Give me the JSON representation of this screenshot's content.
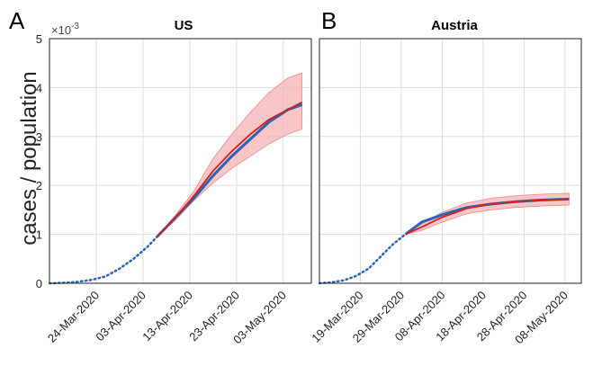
{
  "figure": {
    "ylabel": "cases / population",
    "exponent_label": "×10",
    "exponent_power": "-3"
  },
  "chart_data": [
    {
      "type": "line",
      "panel_letter": "A",
      "title": "US",
      "xlabel": "",
      "ylabel": "cases / population",
      "ylim": [
        0,
        5
      ],
      "y_scale": "×10^-3",
      "y_ticks": [
        "0",
        "1",
        "2",
        "3",
        "4",
        "5"
      ],
      "x_ticks": [
        "24-Mar-2020",
        "03-Apr-2020",
        "13-Apr-2020",
        "23-Apr-2020",
        "03-May-2020"
      ],
      "grid": true,
      "colors": {
        "observed": "#2a63b8",
        "fit": "#d81e1e",
        "band": "#f6b3b3"
      },
      "series": [
        {
          "style": "dotted",
          "values_by_date": [
            [
              "2020-03-14",
              0.0
            ],
            [
              "2020-03-17",
              0.01
            ],
            [
              "2020-03-20",
              0.03
            ],
            [
              "2020-03-23",
              0.07
            ],
            [
              "2020-03-26",
              0.14
            ],
            [
              "2020-03-29",
              0.3
            ],
            [
              "2020-04-01",
              0.5
            ],
            [
              "2020-04-04",
              0.75
            ],
            [
              "2020-04-06",
              0.95
            ]
          ]
        },
        {
          "style": "solid-blue",
          "values_by_date": [
            [
              "2020-04-06",
              0.95
            ],
            [
              "2020-04-10",
              1.35
            ],
            [
              "2020-04-14",
              1.75
            ],
            [
              "2020-04-18",
              2.2
            ],
            [
              "2020-04-22",
              2.6
            ],
            [
              "2020-04-26",
              2.95
            ],
            [
              "2020-04-30",
              3.3
            ],
            [
              "2020-05-04",
              3.55
            ],
            [
              "2020-05-07",
              3.65
            ]
          ]
        },
        {
          "style": "solid-red",
          "values_by_date": [
            [
              "2020-04-06",
              0.95
            ],
            [
              "2020-04-10",
              1.35
            ],
            [
              "2020-04-14",
              1.8
            ],
            [
              "2020-04-18",
              2.3
            ],
            [
              "2020-04-22",
              2.7
            ],
            [
              "2020-04-26",
              3.05
            ],
            [
              "2020-04-30",
              3.35
            ],
            [
              "2020-05-04",
              3.55
            ],
            [
              "2020-05-07",
              3.7
            ]
          ]
        }
      ],
      "band": {
        "dates": [
          "2020-04-06",
          "2020-04-10",
          "2020-04-14",
          "2020-04-18",
          "2020-04-22",
          "2020-04-26",
          "2020-04-30",
          "2020-05-04",
          "2020-05-07"
        ],
        "lower": [
          0.95,
          1.3,
          1.7,
          2.05,
          2.35,
          2.6,
          2.85,
          3.05,
          3.15
        ],
        "upper": [
          0.95,
          1.4,
          1.9,
          2.55,
          3.05,
          3.5,
          3.9,
          4.2,
          4.3
        ]
      }
    },
    {
      "type": "line",
      "panel_letter": "B",
      "title": "Austria",
      "xlabel": "",
      "ylim": [
        0,
        5
      ],
      "y_scale": "×10^-3",
      "x_ticks": [
        "19-Mar-2020",
        "29-Mar-2020",
        "08-Apr-2020",
        "18-Apr-2020",
        "28-Apr-2020",
        "08-May-2020"
      ],
      "grid": true,
      "colors": {
        "observed": "#2a63b8",
        "fit": "#d81e1e",
        "band": "#f6b3b3"
      },
      "series": [
        {
          "style": "dotted",
          "values_by_date": [
            [
              "2020-03-09",
              0.0
            ],
            [
              "2020-03-12",
              0.02
            ],
            [
              "2020-03-15",
              0.06
            ],
            [
              "2020-03-18",
              0.15
            ],
            [
              "2020-03-21",
              0.3
            ],
            [
              "2020-03-24",
              0.55
            ],
            [
              "2020-03-27",
              0.8
            ],
            [
              "2020-03-30",
              1.0
            ]
          ]
        },
        {
          "style": "solid-blue",
          "values_by_date": [
            [
              "2020-03-30",
              1.0
            ],
            [
              "2020-04-03",
              1.25
            ],
            [
              "2020-04-08",
              1.4
            ],
            [
              "2020-04-14",
              1.55
            ],
            [
              "2020-04-20",
              1.62
            ],
            [
              "2020-04-26",
              1.67
            ],
            [
              "2020-05-02",
              1.7
            ],
            [
              "2020-05-09",
              1.72
            ]
          ]
        },
        {
          "style": "solid-red",
          "values_by_date": [
            [
              "2020-03-30",
              1.0
            ],
            [
              "2020-04-03",
              1.15
            ],
            [
              "2020-04-08",
              1.35
            ],
            [
              "2020-04-14",
              1.53
            ],
            [
              "2020-04-20",
              1.62
            ],
            [
              "2020-04-26",
              1.67
            ],
            [
              "2020-05-02",
              1.7
            ],
            [
              "2020-05-09",
              1.72
            ]
          ]
        }
      ],
      "band": {
        "dates": [
          "2020-03-30",
          "2020-04-03",
          "2020-04-08",
          "2020-04-14",
          "2020-04-20",
          "2020-04-26",
          "2020-05-02",
          "2020-05-09"
        ],
        "lower": [
          1.0,
          1.08,
          1.25,
          1.42,
          1.5,
          1.55,
          1.58,
          1.6
        ],
        "upper": [
          1.0,
          1.22,
          1.45,
          1.64,
          1.74,
          1.79,
          1.82,
          1.84
        ]
      }
    }
  ]
}
